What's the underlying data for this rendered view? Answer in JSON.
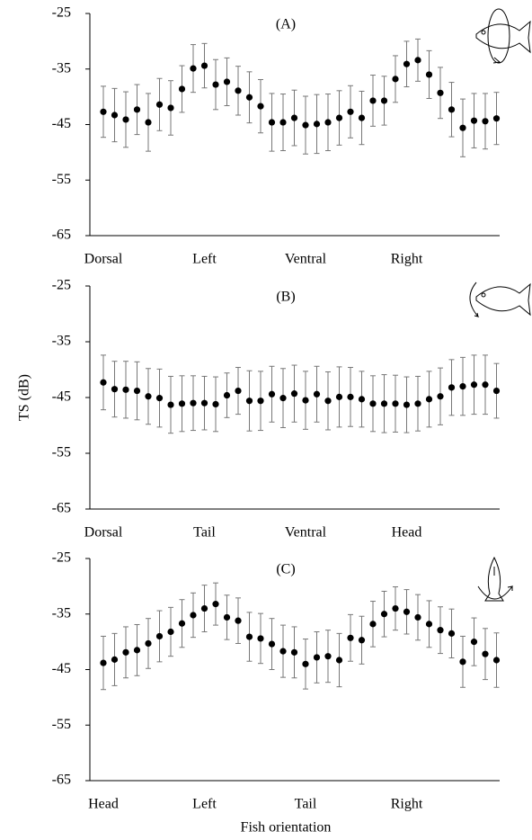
{
  "chart_data": [
    {
      "type": "errorbar",
      "title": "(A)",
      "categories": [
        "Dorsal",
        null,
        null,
        null,
        null,
        null,
        null,
        null,
        null,
        "Left",
        null,
        null,
        null,
        null,
        null,
        null,
        null,
        null,
        "Ventral",
        null,
        null,
        null,
        null,
        null,
        null,
        null,
        null,
        "Right",
        null,
        null,
        null,
        null,
        null,
        null,
        null,
        null
      ],
      "series": [
        {
          "color": "#000000",
          "values": [
            -42.7,
            -43.3,
            -44.1,
            -42.3,
            -44.6,
            -41.4,
            -42.0,
            -38.6,
            -34.9,
            -34.4,
            -37.8,
            -37.3,
            -38.9,
            -40.1,
            -41.7,
            -44.6,
            -44.6,
            -43.8,
            -45.1,
            -44.9,
            -44.6,
            -43.8,
            -42.7,
            -43.8,
            -40.7,
            -40.7,
            -36.8,
            -34.1,
            -33.4,
            -36.0,
            -39.3,
            -42.3,
            -45.6,
            -44.3,
            -44.4,
            -43.9
          ],
          "errors": [
            4.6,
            4.8,
            5.0,
            4.5,
            5.2,
            4.7,
            4.9,
            4.2,
            4.3,
            4.0,
            4.5,
            4.3,
            4.4,
            4.6,
            4.8,
            5.2,
            5.1,
            5.0,
            5.2,
            5.3,
            5.1,
            4.9,
            4.7,
            4.8,
            4.6,
            4.4,
            4.2,
            4.1,
            3.8,
            4.3,
            4.6,
            4.9,
            5.2,
            4.9,
            5.0,
            4.7
          ]
        }
      ],
      "ylim": [
        -65,
        -25
      ],
      "yticks": [
        -65,
        -55,
        -45,
        -35,
        -25
      ]
    },
    {
      "type": "errorbar",
      "title": "(B)",
      "ylabel": "TS (dB)",
      "categories": [
        "Dorsal",
        null,
        null,
        null,
        null,
        null,
        null,
        null,
        null,
        "Tail",
        null,
        null,
        null,
        null,
        null,
        null,
        null,
        null,
        "Ventral",
        null,
        null,
        null,
        null,
        null,
        null,
        null,
        null,
        "Head",
        null,
        null,
        null,
        null,
        null,
        null,
        null,
        null
      ],
      "series": [
        {
          "color": "#000000",
          "values": [
            -42.3,
            -43.5,
            -43.6,
            -43.8,
            -44.8,
            -45.1,
            -46.3,
            -46.1,
            -46.0,
            -46.0,
            -46.2,
            -44.6,
            -43.8,
            -45.6,
            -45.6,
            -44.4,
            -45.1,
            -44.3,
            -45.5,
            -44.4,
            -45.6,
            -44.9,
            -44.9,
            -45.3,
            -46.1,
            -46.1,
            -46.1,
            -46.3,
            -46.1,
            -45.3,
            -44.8,
            -43.2,
            -43.0,
            -42.7,
            -42.7,
            -43.8
          ],
          "errors": [
            4.9,
            5.0,
            5.1,
            5.2,
            5.0,
            5.2,
            5.1,
            5.0,
            4.9,
            4.8,
            4.9,
            4.0,
            4.2,
            5.4,
            5.3,
            5.0,
            5.3,
            5.1,
            5.2,
            5.0,
            5.2,
            5.4,
            5.3,
            5.0,
            5.0,
            5.2,
            5.1,
            5.0,
            4.9,
            5.0,
            5.1,
            5.0,
            5.2,
            5.3,
            5.3,
            4.9
          ]
        }
      ],
      "ylim": [
        -65,
        -25
      ],
      "yticks": [
        -65,
        -55,
        -45,
        -35,
        -25
      ]
    },
    {
      "type": "errorbar",
      "title": "(C)",
      "xlabel": "Fish orientation",
      "categories": [
        "Head",
        null,
        null,
        null,
        null,
        null,
        null,
        null,
        null,
        "Left",
        null,
        null,
        null,
        null,
        null,
        null,
        null,
        null,
        "Tail",
        null,
        null,
        null,
        null,
        null,
        null,
        null,
        null,
        "Right",
        null,
        null,
        null,
        null,
        null,
        null,
        null,
        null
      ],
      "series": [
        {
          "color": "#000000",
          "values": [
            -43.8,
            -43.2,
            -41.9,
            -41.5,
            -40.3,
            -39.0,
            -38.2,
            -36.7,
            -35.2,
            -34.0,
            -33.2,
            -35.6,
            -36.2,
            -39.1,
            -39.4,
            -40.4,
            -41.7,
            -41.9,
            -44.0,
            -42.8,
            -42.6,
            -43.3,
            -39.3,
            -39.7,
            -36.8,
            -35.0,
            -34.0,
            -34.6,
            -35.6,
            -36.8,
            -37.9,
            -38.5,
            -43.6,
            -40.0,
            -42.2,
            -43.3
          ],
          "errors": [
            4.8,
            4.7,
            4.6,
            4.6,
            4.5,
            4.6,
            4.4,
            4.3,
            4.0,
            4.2,
            3.8,
            4.0,
            4.1,
            4.4,
            4.5,
            4.6,
            4.7,
            4.6,
            4.5,
            4.6,
            4.7,
            4.8,
            4.2,
            4.3,
            4.1,
            4.1,
            3.9,
            4.0,
            4.1,
            4.2,
            4.2,
            4.4,
            4.6,
            4.3,
            4.6,
            4.9
          ]
        }
      ],
      "ylim": [
        -65,
        -25
      ],
      "yticks": [
        -65,
        -55,
        -45,
        -35,
        -25
      ]
    }
  ]
}
